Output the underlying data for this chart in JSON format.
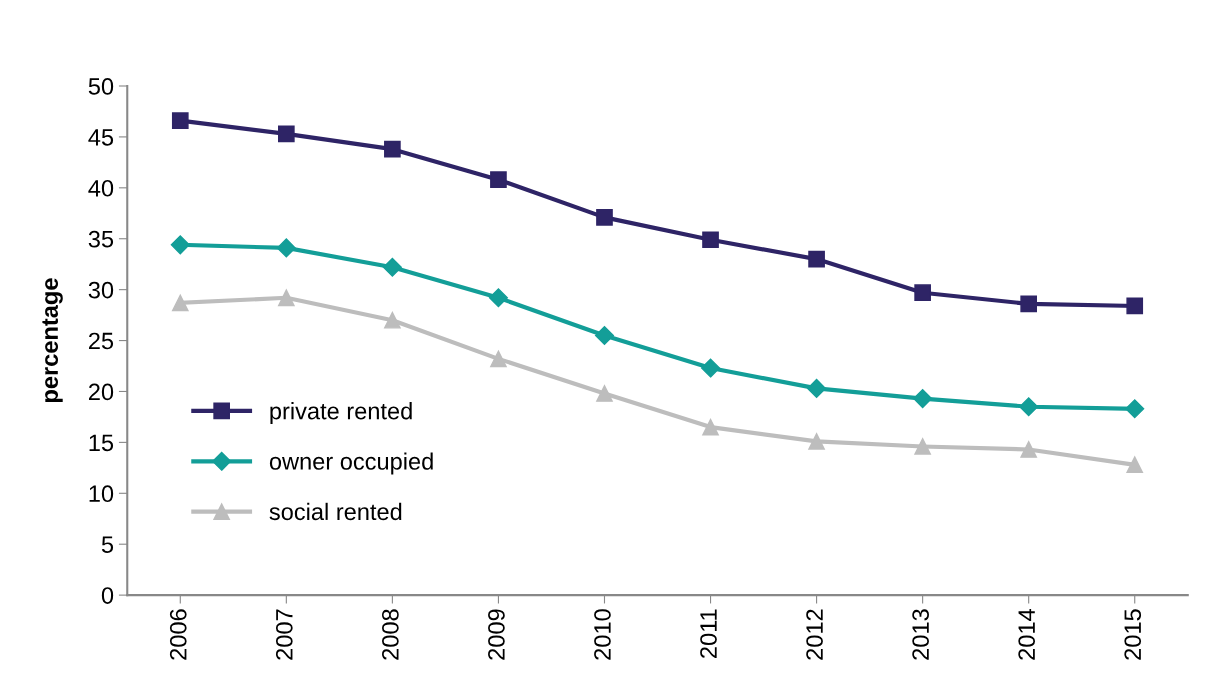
{
  "chart_data": {
    "type": "line",
    "ylabel": "percentage",
    "categories": [
      "2006",
      "2007",
      "2008",
      "2009",
      "2010",
      "2011",
      "2012",
      "2013",
      "2014",
      "2015"
    ],
    "series": [
      {
        "name": "private rented",
        "color": "#2e2466",
        "marker": "square",
        "values": [
          46.6,
          45.3,
          43.8,
          40.8,
          37.1,
          34.9,
          33.0,
          29.7,
          28.6,
          28.4
        ]
      },
      {
        "name": "owner occupied",
        "color": "#139e98",
        "marker": "diamond",
        "values": [
          34.4,
          34.1,
          32.2,
          29.2,
          25.5,
          22.3,
          20.3,
          19.3,
          18.5,
          18.3
        ]
      },
      {
        "name": "social rented",
        "color": "#bdbdbd",
        "marker": "triangle",
        "values": [
          28.7,
          29.2,
          27.0,
          23.2,
          19.8,
          16.5,
          15.1,
          14.6,
          14.3,
          12.8
        ]
      }
    ],
    "ylim": [
      0,
      50
    ],
    "yticks": [
      0,
      5,
      10,
      15,
      20,
      25,
      30,
      35,
      40,
      45,
      50
    ],
    "grid": false,
    "legend": "bottom left",
    "line_style": "solid"
  }
}
